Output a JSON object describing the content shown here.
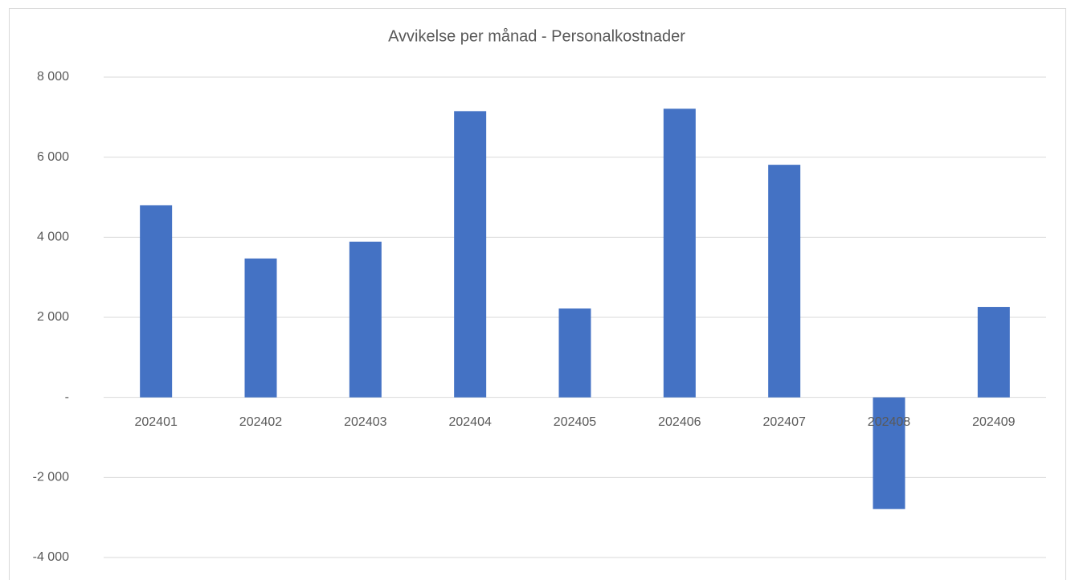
{
  "chart_data": {
    "type": "bar",
    "title": "Avvikelse per månad - Personalkostnader",
    "categories": [
      "202401",
      "202402",
      "202403",
      "202404",
      "202405",
      "202406",
      "202407",
      "202408",
      "202409"
    ],
    "values": [
      4800,
      3470,
      3890,
      7150,
      2220,
      7210,
      5810,
      -2790,
      2260
    ],
    "color": "#4472c4",
    "ylim": [
      -4000,
      8000
    ],
    "yticks": [
      {
        "value": -4000,
        "label": "-4 000"
      },
      {
        "value": -2000,
        "label": "-2 000"
      },
      {
        "value": 0,
        "label": "-"
      },
      {
        "value": 2000,
        "label": "2 000"
      },
      {
        "value": 4000,
        "label": "4 000"
      },
      {
        "value": 6000,
        "label": "6 000"
      },
      {
        "value": 8000,
        "label": "8 000"
      }
    ],
    "grid": true
  }
}
